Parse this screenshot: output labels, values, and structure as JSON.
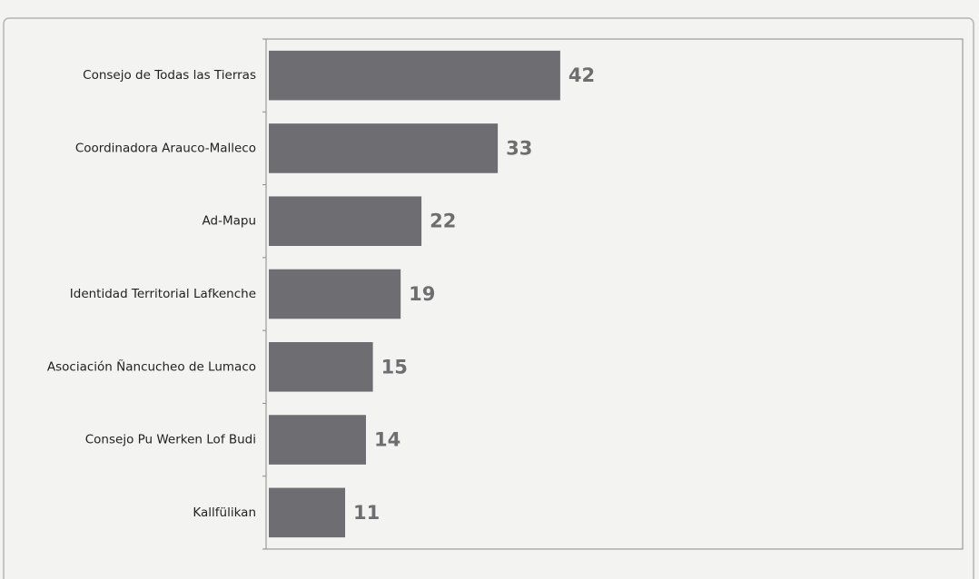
{
  "chart_data": {
    "type": "bar",
    "orientation": "horizontal",
    "categories": [
      "Consejo de Todas las Tierras",
      "Coordinadora Arauco-Malleco",
      "Ad-Mapu",
      "Identidad Territorial Lafkenche",
      "Asociación Ñancucheo de Lumaco",
      "Consejo Pu Werken Lof Budi",
      "Kallfülikan"
    ],
    "values": [
      42,
      33,
      22,
      19,
      15,
      14,
      11
    ],
    "color": "#6e6e72",
    "xlim": [
      0,
      100
    ]
  }
}
